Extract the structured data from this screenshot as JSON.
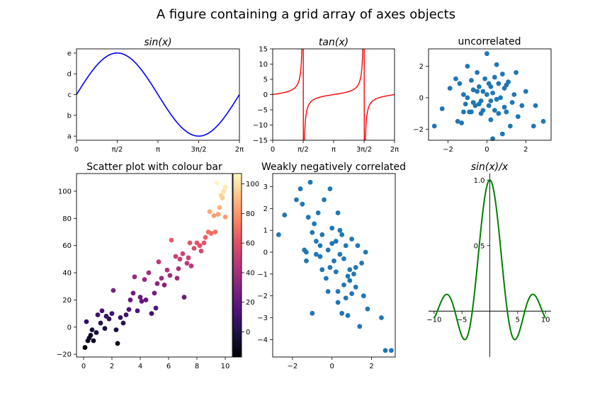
{
  "figure": {
    "suptitle": "A figure containing a grid array of axes objects"
  },
  "chart_data": [
    {
      "id": "sin",
      "type": "line",
      "title": "sin(x)",
      "color": "#0000ff",
      "function": "sin(x)",
      "xlim": [
        0,
        6.283185
      ],
      "ylim": [
        -1.1,
        1.1
      ],
      "xticks": {
        "values": [
          0,
          1.570796,
          3.141593,
          4.712389,
          6.283185
        ],
        "labels": [
          "0",
          "π/2",
          "π",
          "3π/2",
          "2π"
        ]
      },
      "yticks": {
        "values": [
          -1,
          -0.5,
          0,
          0.5,
          1
        ],
        "labels": [
          "a",
          "b",
          "c",
          "d",
          "e"
        ]
      }
    },
    {
      "id": "tan",
      "type": "line",
      "title": "tan(x)",
      "color": "#ff0000",
      "function": "tan(x)",
      "xlim": [
        0,
        6.283185
      ],
      "ylim": [
        -15,
        15
      ],
      "xticks": {
        "values": [
          0,
          1.570796,
          3.141593,
          4.712389,
          6.283185
        ],
        "labels": [
          "0",
          "π/2",
          "π",
          "3π/2",
          "2π"
        ]
      },
      "yticks": {
        "values": [
          15,
          10,
          5,
          0,
          -5,
          -10,
          -15
        ],
        "labels": [
          "15",
          "10",
          "5",
          "0",
          "−5",
          "−10",
          "−15"
        ]
      }
    },
    {
      "id": "uncorrelated",
      "type": "scatter",
      "title": "uncorrelated",
      "color": "#1f77b4",
      "xlim": [
        -3.0,
        3.3
      ],
      "ylim": [
        -2.7,
        3.1
      ],
      "xticks": {
        "values": [
          -2,
          0,
          2
        ],
        "labels": [
          "−2",
          "0",
          "2"
        ]
      },
      "yticks": {
        "values": [
          2,
          0,
          -2
        ],
        "labels": [
          "2",
          "0",
          "−2"
        ]
      },
      "points": [
        [
          -2.7,
          -1.8
        ],
        [
          -2.3,
          -0.7
        ],
        [
          -1.9,
          0.6
        ],
        [
          -1.6,
          1.2
        ],
        [
          -1.4,
          0.9
        ],
        [
          -1.5,
          -1.5
        ],
        [
          -1.3,
          -1.6
        ],
        [
          -1.2,
          0.2
        ],
        [
          -1.0,
          2.0
        ],
        [
          -1.1,
          -0.4
        ],
        [
          -0.9,
          -0.9
        ],
        [
          -0.8,
          1.1
        ],
        [
          -1.0,
          0.0
        ],
        [
          -0.7,
          0.5
        ],
        [
          -0.6,
          -0.5
        ],
        [
          -0.5,
          0.4
        ],
        [
          -0.5,
          1.6
        ],
        [
          -0.3,
          -0.2
        ],
        [
          -0.4,
          0.7
        ],
        [
          -0.2,
          -0.8
        ],
        [
          -0.1,
          1.2
        ],
        [
          0.0,
          2.8
        ],
        [
          0.0,
          0.2
        ],
        [
          0.1,
          -0.5
        ],
        [
          0.1,
          0.9
        ],
        [
          0.2,
          -1.4
        ],
        [
          0.3,
          0.3
        ],
        [
          0.3,
          -2.6
        ],
        [
          0.4,
          1.3
        ],
        [
          0.5,
          -0.1
        ],
        [
          0.5,
          2.1
        ],
        [
          0.6,
          -1.0
        ],
        [
          0.7,
          0.0
        ],
        [
          0.8,
          1.5
        ],
        [
          0.8,
          -2.3
        ],
        [
          0.9,
          0.6
        ],
        [
          1.0,
          -0.9
        ],
        [
          1.1,
          1.0
        ],
        [
          1.2,
          -1.8
        ],
        [
          1.3,
          -0.3
        ],
        [
          1.4,
          0.2
        ],
        [
          1.5,
          1.6
        ],
        [
          1.6,
          -1.2
        ],
        [
          1.8,
          -0.5
        ],
        [
          2.0,
          0.4
        ],
        [
          2.4,
          -1.8
        ],
        [
          2.5,
          -0.5
        ],
        [
          2.9,
          -1.5
        ],
        [
          -0.8,
          -0.9
        ],
        [
          -0.4,
          -0.4
        ],
        [
          0.2,
          -0.2
        ],
        [
          0.6,
          0.9
        ],
        [
          -1.2,
          -0.9
        ],
        [
          0.4,
          -0.8
        ],
        [
          -0.2,
          0.4
        ],
        [
          1.0,
          0.8
        ],
        [
          -0.7,
          -0.3
        ],
        [
          0.9,
          -0.6
        ],
        [
          0.2,
          0.7
        ],
        [
          -0.3,
          -1.0
        ]
      ]
    },
    {
      "id": "colourbar",
      "type": "scatter",
      "title": "Scatter plot with colour bar",
      "colormap": "magma",
      "xlim": [
        -0.5,
        10.5
      ],
      "ylim": [
        -22,
        113
      ],
      "xticks": {
        "values": [
          0,
          2,
          4,
          6,
          8,
          10
        ],
        "labels": [
          "0",
          "2",
          "4",
          "6",
          "8",
          "10"
        ]
      },
      "yticks": {
        "values": [
          100,
          80,
          60,
          40,
          20,
          0,
          -20
        ],
        "labels": [
          "100",
          "80",
          "60",
          "40",
          "20",
          "0",
          "−20"
        ]
      },
      "colorbar": {
        "vmin": -17,
        "vmax": 107,
        "ticks": [
          100,
          80,
          60,
          40,
          20,
          0
        ],
        "labels": [
          "100",
          "80",
          "60",
          "40",
          "20",
          "0"
        ]
      },
      "points": [
        [
          0.1,
          -15
        ],
        [
          0.3,
          -10
        ],
        [
          0.5,
          -6
        ],
        [
          0.2,
          4
        ],
        [
          0.6,
          -2
        ],
        [
          0.9,
          -4
        ],
        [
          1.2,
          3
        ],
        [
          1.5,
          -1
        ],
        [
          0.7,
          -10
        ],
        [
          1.0,
          9
        ],
        [
          1.3,
          12
        ],
        [
          1.6,
          8
        ],
        [
          2.0,
          10
        ],
        [
          2.3,
          -2
        ],
        [
          2.4,
          -12
        ],
        [
          2.1,
          27
        ],
        [
          2.6,
          7
        ],
        [
          2.8,
          3
        ],
        [
          3.0,
          9
        ],
        [
          3.2,
          13
        ],
        [
          3.5,
          25
        ],
        [
          3.8,
          12
        ],
        [
          4.0,
          22
        ],
        [
          4.1,
          19
        ],
        [
          3.6,
          37
        ],
        [
          4.4,
          20
        ],
        [
          4.8,
          10
        ],
        [
          5.0,
          25
        ],
        [
          5.1,
          14
        ],
        [
          4.3,
          35
        ],
        [
          4.6,
          40
        ],
        [
          5.3,
          48
        ],
        [
          5.5,
          36
        ],
        [
          5.7,
          31
        ],
        [
          5.9,
          42
        ],
        [
          6.1,
          38
        ],
        [
          6.2,
          64
        ],
        [
          6.5,
          52
        ],
        [
          6.8,
          50
        ],
        [
          7.0,
          54
        ],
        [
          7.1,
          22
        ],
        [
          7.3,
          47
        ],
        [
          7.5,
          62
        ],
        [
          7.8,
          58
        ],
        [
          8.0,
          62
        ],
        [
          8.2,
          60
        ],
        [
          8.3,
          56
        ],
        [
          8.6,
          66
        ],
        [
          8.8,
          70
        ],
        [
          9.0,
          69
        ],
        [
          9.2,
          82
        ],
        [
          9.5,
          83
        ],
        [
          9.6,
          88
        ],
        [
          9.8,
          95
        ],
        [
          9.9,
          100
        ],
        [
          10.0,
          103
        ],
        [
          9.4,
          106
        ],
        [
          10.0,
          81
        ],
        [
          7.6,
          45
        ],
        [
          8.5,
          62
        ],
        [
          9.3,
          70
        ],
        [
          6.7,
          43
        ],
        [
          0.4,
          -8
        ],
        [
          1.8,
          6
        ],
        [
          3.3,
          20
        ],
        [
          5.2,
          32
        ],
        [
          6.6,
          36
        ],
        [
          7.4,
          51
        ],
        [
          8.9,
          85
        ],
        [
          9.7,
          97
        ]
      ]
    },
    {
      "id": "weakly",
      "type": "scatter",
      "title": "Weakly negatively correlated",
      "color": "#1f77b4",
      "xlim": [
        -3.0,
        3.2
      ],
      "ylim": [
        -4.8,
        3.6
      ],
      "xticks": {
        "values": [
          -2,
          0,
          2
        ],
        "labels": [
          "−2",
          "0",
          "2"
        ]
      },
      "yticks": {
        "values": [
          3,
          2,
          1,
          0,
          -1,
          -2,
          -3,
          -4
        ],
        "labels": [
          "3",
          "2",
          "1",
          "0",
          "−1",
          "−2",
          "−3",
          "−4"
        ]
      },
      "points": [
        [
          -2.7,
          0.8
        ],
        [
          -2.4,
          1.7
        ],
        [
          -1.8,
          2.4
        ],
        [
          -1.6,
          2.9
        ],
        [
          -1.4,
          0.1
        ],
        [
          -1.3,
          -0.4
        ],
        [
          -1.5,
          2.2
        ],
        [
          -1.2,
          1.6
        ],
        [
          -1.1,
          3.2
        ],
        [
          -1.0,
          -2.8
        ],
        [
          -0.9,
          1.3
        ],
        [
          -0.8,
          0.5
        ],
        [
          -0.7,
          1.8
        ],
        [
          -0.6,
          -0.2
        ],
        [
          -0.5,
          0.8
        ],
        [
          -0.4,
          2.4
        ],
        [
          -0.3,
          -1.2
        ],
        [
          -0.2,
          0.1
        ],
        [
          -0.1,
          -0.7
        ],
        [
          -0.1,
          2.9
        ],
        [
          0.0,
          1.1
        ],
        [
          0.1,
          -0.4
        ],
        [
          0.2,
          0.5
        ],
        [
          0.3,
          1.8
        ],
        [
          0.3,
          -1.8
        ],
        [
          0.4,
          -0.1
        ],
        [
          0.5,
          0.8
        ],
        [
          0.5,
          -2.8
        ],
        [
          0.6,
          -1.5
        ],
        [
          0.7,
          0.3
        ],
        [
          0.8,
          -2.9
        ],
        [
          0.9,
          -0.8
        ],
        [
          1.0,
          0.6
        ],
        [
          1.1,
          -1.0
        ],
        [
          1.2,
          -1.6
        ],
        [
          1.3,
          0.3
        ],
        [
          1.4,
          -3.4
        ],
        [
          1.5,
          -0.5
        ],
        [
          1.6,
          -2.0
        ],
        [
          1.7,
          0.0
        ],
        [
          1.8,
          -2.6
        ],
        [
          2.5,
          -3.0
        ],
        [
          2.7,
          -4.5
        ],
        [
          3.0,
          -4.5
        ],
        [
          -1.3,
          0.0
        ],
        [
          -0.8,
          -0.1
        ],
        [
          -0.5,
          -0.8
        ],
        [
          0.2,
          -0.9
        ],
        [
          0.6,
          -0.3
        ],
        [
          0.9,
          -1.3
        ],
        [
          1.2,
          -0.7
        ],
        [
          -0.2,
          -1.8
        ],
        [
          0.0,
          0.4
        ],
        [
          0.4,
          1.0
        ],
        [
          0.7,
          -2.1
        ],
        [
          1.0,
          -1.9
        ],
        [
          -0.6,
          0.3
        ],
        [
          0.3,
          -2.3
        ],
        [
          -1.0,
          0.9
        ],
        [
          0.8,
          -1.1
        ]
      ]
    },
    {
      "id": "sinc",
      "type": "line",
      "title": "sin(x)/x",
      "color": "#008000",
      "function": "sin(x)/x",
      "xlim": [
        -11,
        11
      ],
      "ylim": [
        -0.35,
        1.05
      ],
      "xticks": {
        "values": [
          -10,
          -5,
          5,
          10
        ],
        "labels": [
          "−10",
          "−5",
          "5",
          "10"
        ]
      },
      "yticks": {
        "values": [
          1.0,
          0.5
        ],
        "labels": [
          "1.0",
          "0.5"
        ]
      }
    }
  ]
}
